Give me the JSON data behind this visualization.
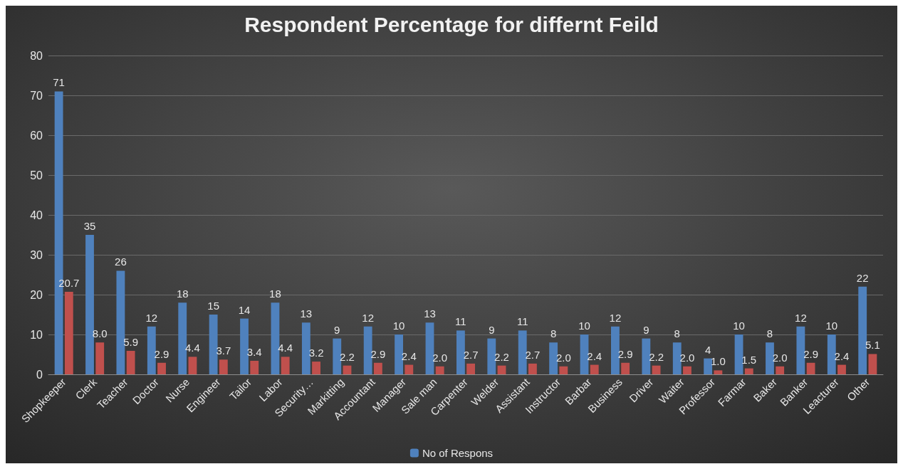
{
  "chart_data": {
    "type": "bar",
    "title": "Respondent Percentage for differnt Feild",
    "categories": [
      "Shopkeeper",
      "Clerk",
      "Teacher",
      "Doctor",
      "Nurse",
      "Engineer",
      "Tailor",
      "Labor",
      "Security…",
      "Markitting",
      "Accountant",
      "Manager",
      "Sale man",
      "Carpenter",
      "Welder",
      "Assistant",
      "Instructor",
      "Barbar",
      "Business",
      "Driver",
      "Waiter",
      "Professor",
      "Farmar",
      "Baker",
      "Banker",
      "Leacturer",
      "Other"
    ],
    "series": [
      {
        "name": "No of Respons",
        "color": "#4f81bd",
        "values": [
          71,
          35,
          26,
          12,
          18,
          15,
          14,
          18,
          13,
          9,
          12,
          10,
          13,
          11,
          9,
          11,
          8,
          10,
          12,
          9,
          8,
          4,
          10,
          8,
          12,
          10,
          22
        ],
        "value_labels": [
          "71",
          "35",
          "26",
          "12",
          "18",
          "15",
          "14",
          "18",
          "13",
          "9",
          "12",
          "10",
          "13",
          "11",
          "9",
          "11",
          "8",
          "10",
          "12",
          "9",
          "8",
          "4",
          "10",
          "8",
          "12",
          "10",
          "22"
        ]
      },
      {
        "color": "#c0504d",
        "values": [
          20.7,
          8.0,
          5.9,
          2.9,
          4.4,
          3.7,
          3.4,
          4.4,
          3.2,
          2.2,
          2.9,
          2.4,
          2.0,
          2.7,
          2.2,
          2.7,
          2.0,
          2.4,
          2.9,
          2.2,
          2.0,
          1.0,
          1.5,
          2.0,
          2.9,
          2.4,
          5.1
        ],
        "value_labels": [
          "20.7",
          "8.0",
          "5.9",
          "2.9",
          "4.4",
          "3.7",
          "3.4",
          "4.4",
          "3.2",
          "2.2",
          "2.9",
          "2.4",
          "2.0",
          "2.7",
          "2.2",
          "2.7",
          "2.0",
          "2.4",
          "2.9",
          "2.2",
          "2.0",
          "1.0",
          "1.5",
          "2.0",
          "2.9",
          "2.4",
          "5.1"
        ]
      }
    ],
    "ylim": [
      0,
      80
    ],
    "yticks": [
      0,
      10,
      20,
      30,
      40,
      50,
      60,
      70,
      80
    ],
    "grid": "y",
    "legend": "bottom"
  }
}
